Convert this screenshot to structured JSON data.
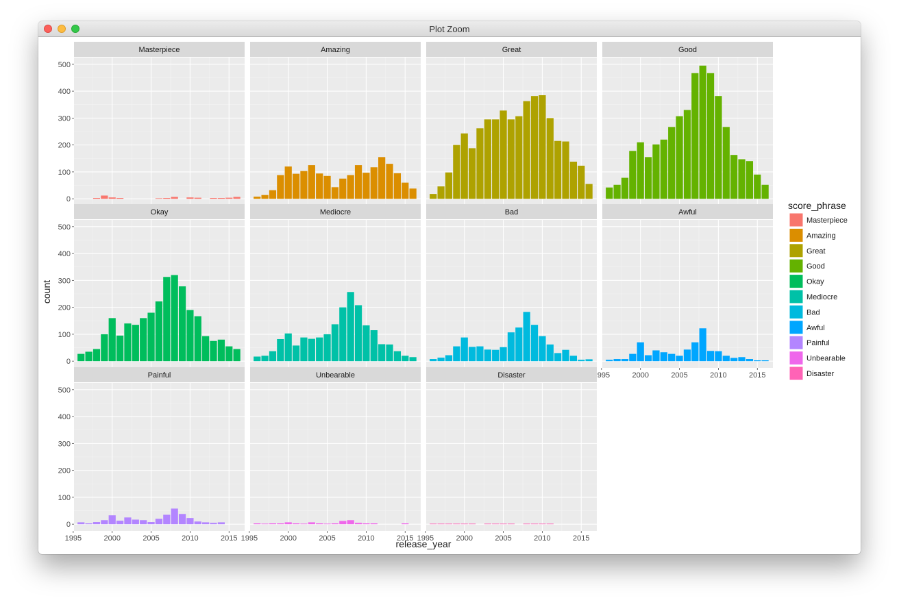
{
  "window": {
    "title": "Plot Zoom"
  },
  "chart_data": {
    "type": "bar",
    "xlabel": "release_year",
    "ylabel": "count",
    "ylim": [
      0,
      500
    ],
    "xlim": [
      1995,
      2016
    ],
    "x_ticks": [
      "1995",
      "2000",
      "2005",
      "2010",
      "2015"
    ],
    "y_ticks": [
      "0",
      "100",
      "200",
      "300",
      "400",
      "500"
    ],
    "grid": true,
    "facets": "facet_wrap(~score_phrase, ncol = 4)",
    "years": [
      1996,
      1997,
      1998,
      1999,
      2000,
      2001,
      2002,
      2003,
      2004,
      2005,
      2006,
      2007,
      2008,
      2009,
      2010,
      2011,
      2012,
      2013,
      2014,
      2015,
      2016
    ],
    "legend": {
      "title": "score_phrase",
      "position": "right",
      "items": [
        {
          "label": "Masterpiece",
          "color": "#F8766D"
        },
        {
          "label": "Amazing",
          "color": "#DB8E00"
        },
        {
          "label": "Great",
          "color": "#AEA200"
        },
        {
          "label": "Good",
          "color": "#64B200"
        },
        {
          "label": "Okay",
          "color": "#00BD5C"
        },
        {
          "label": "Mediocre",
          "color": "#00C1A7"
        },
        {
          "label": "Bad",
          "color": "#00BADE"
        },
        {
          "label": "Awful",
          "color": "#00A6FF"
        },
        {
          "label": "Painful",
          "color": "#B385FF"
        },
        {
          "label": "Unbearable",
          "color": "#EF67EB"
        },
        {
          "label": "Disaster",
          "color": "#FF63B6"
        }
      ]
    },
    "series": [
      {
        "name": "Masterpiece",
        "color": "#F8766D",
        "values": [
          0,
          0,
          3,
          12,
          5,
          3,
          0,
          0,
          0,
          0,
          2,
          3,
          7,
          0,
          5,
          4,
          0,
          3,
          3,
          4,
          7
        ]
      },
      {
        "name": "Amazing",
        "color": "#DB8E00",
        "values": [
          8,
          14,
          32,
          88,
          120,
          93,
          103,
          125,
          94,
          85,
          43,
          75,
          88,
          125,
          97,
          117,
          155,
          130,
          95,
          60,
          38
        ]
      },
      {
        "name": "Great",
        "color": "#AEA200",
        "values": [
          18,
          46,
          98,
          200,
          243,
          188,
          262,
          295,
          295,
          328,
          295,
          307,
          363,
          382,
          385,
          300,
          215,
          213,
          138,
          123,
          55
        ]
      },
      {
        "name": "Good",
        "color": "#64B200",
        "values": [
          42,
          52,
          78,
          178,
          210,
          155,
          202,
          220,
          267,
          307,
          330,
          467,
          495,
          467,
          382,
          267,
          163,
          147,
          140,
          90,
          52
        ]
      },
      {
        "name": "Okay",
        "color": "#00BD5C",
        "values": [
          27,
          35,
          45,
          100,
          160,
          95,
          140,
          135,
          160,
          180,
          222,
          313,
          320,
          278,
          190,
          167,
          93,
          75,
          80,
          55,
          45
        ]
      },
      {
        "name": "Mediocre",
        "color": "#00C1A7",
        "values": [
          17,
          20,
          37,
          82,
          103,
          58,
          88,
          83,
          88,
          100,
          137,
          200,
          257,
          208,
          133,
          115,
          63,
          62,
          37,
          20,
          15
        ]
      },
      {
        "name": "Bad",
        "color": "#00BADE",
        "values": [
          8,
          13,
          22,
          55,
          88,
          53,
          55,
          43,
          42,
          52,
          107,
          125,
          183,
          135,
          93,
          62,
          30,
          42,
          20,
          5,
          7
        ]
      },
      {
        "name": "Awful",
        "color": "#00A6FF",
        "values": [
          5,
          8,
          8,
          27,
          70,
          22,
          40,
          33,
          27,
          20,
          43,
          70,
          122,
          38,
          37,
          20,
          12,
          15,
          8,
          3,
          3
        ]
      },
      {
        "name": "Painful",
        "color": "#B385FF",
        "values": [
          7,
          3,
          8,
          15,
          33,
          13,
          25,
          17,
          15,
          8,
          20,
          35,
          58,
          38,
          23,
          10,
          7,
          5,
          7,
          0,
          0
        ]
      },
      {
        "name": "Unbearable",
        "color": "#EF67EB",
        "values": [
          3,
          2,
          3,
          3,
          7,
          3,
          2,
          7,
          3,
          2,
          3,
          12,
          15,
          5,
          3,
          3,
          0,
          0,
          0,
          3,
          0
        ]
      },
      {
        "name": "Disaster",
        "color": "#FF63B6",
        "values": [
          2,
          2,
          2,
          2,
          2,
          2,
          0,
          2,
          2,
          2,
          2,
          0,
          2,
          2,
          2,
          2,
          0,
          0,
          0,
          0,
          0
        ]
      }
    ]
  }
}
